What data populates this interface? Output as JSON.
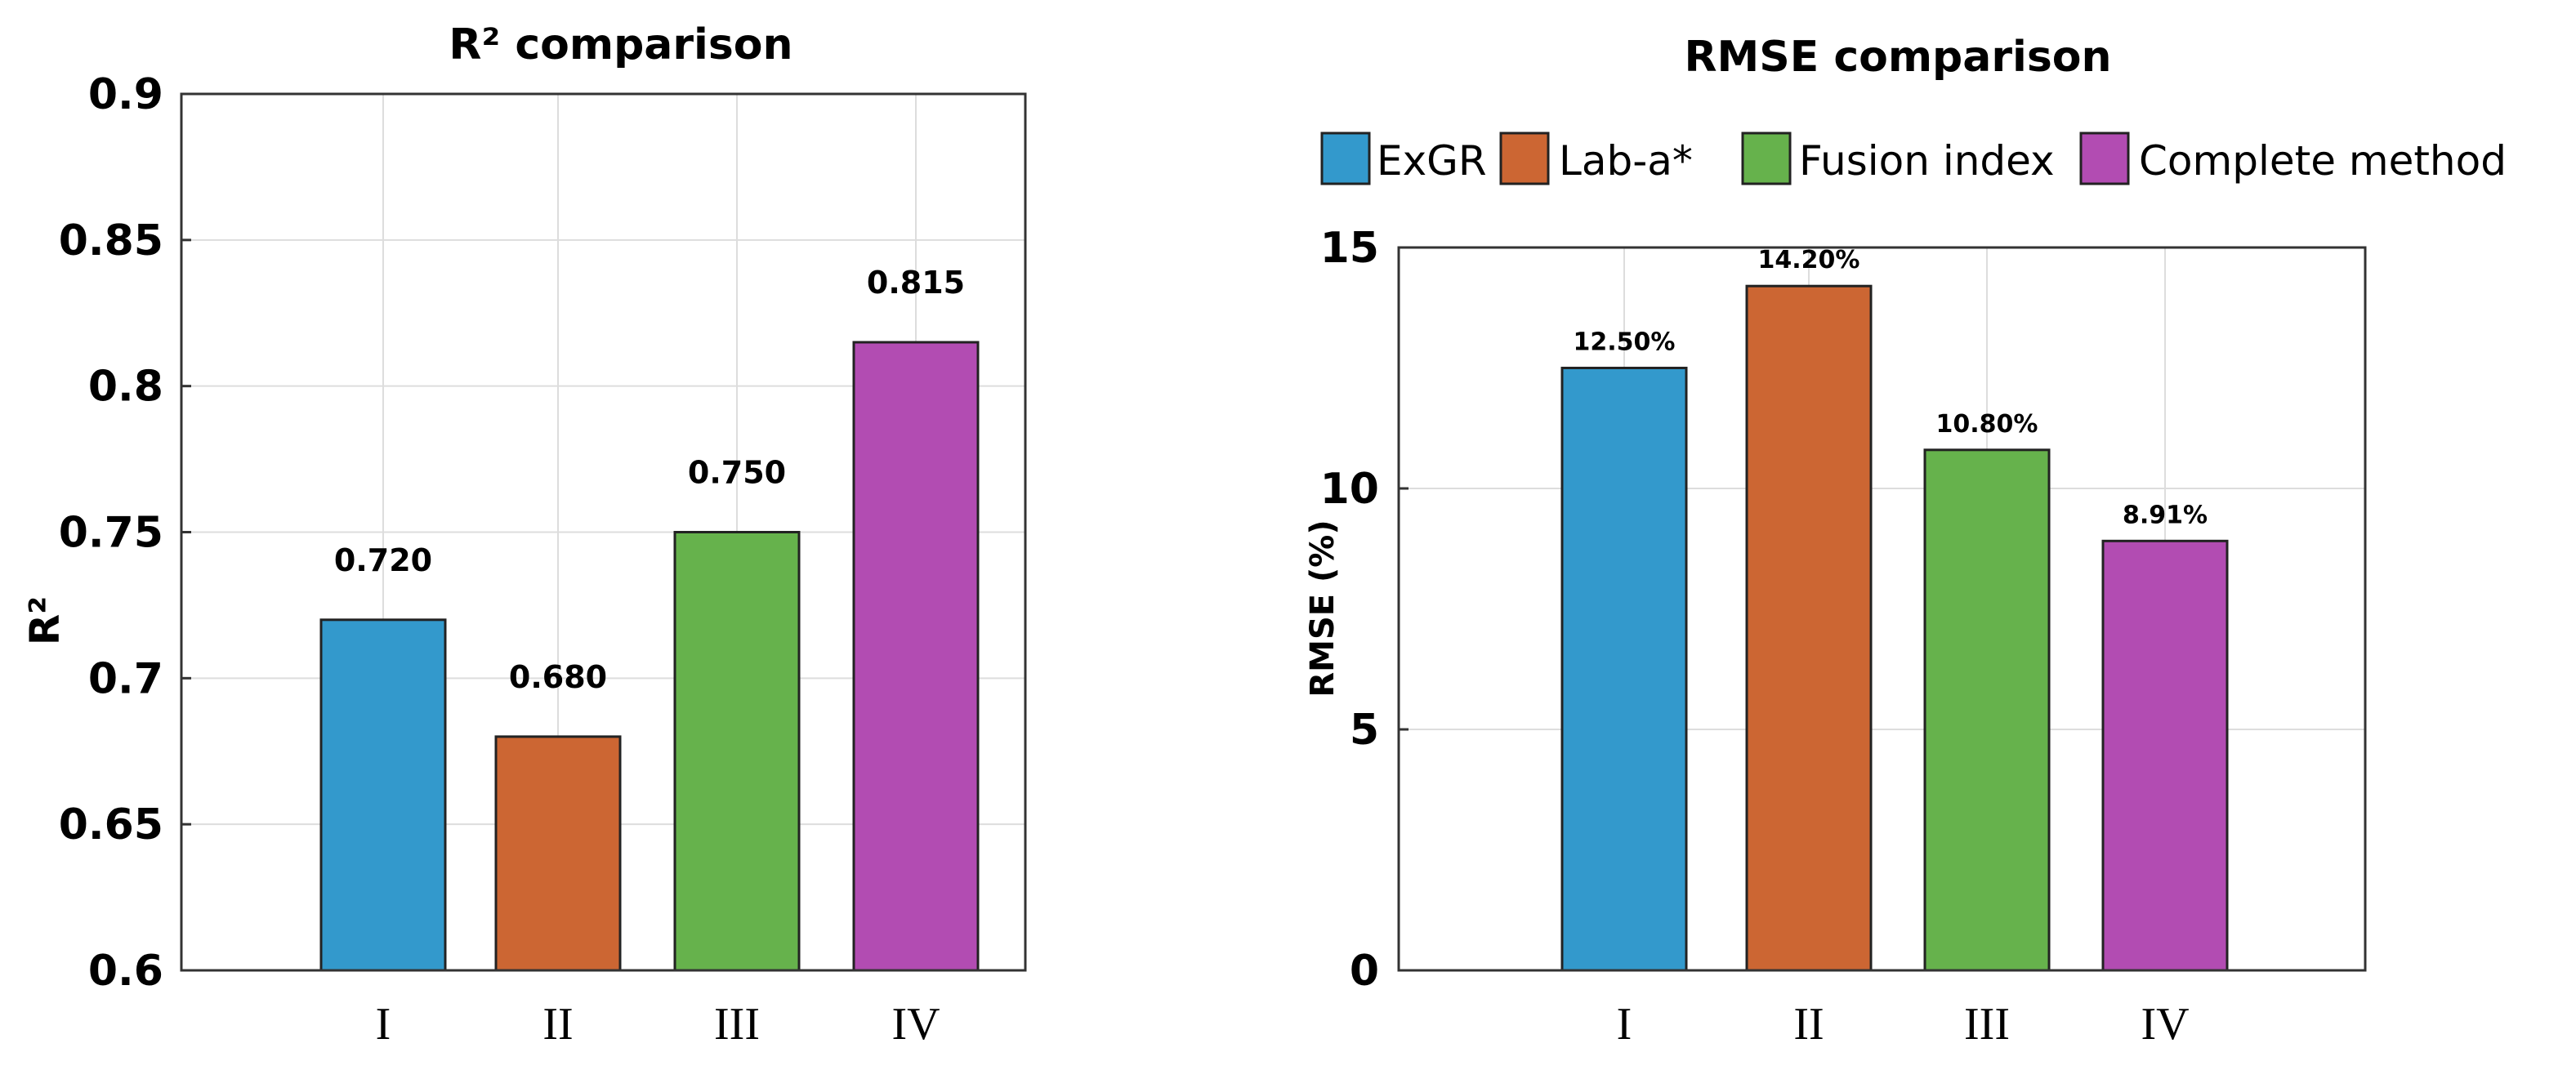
{
  "colors": {
    "exgr": "#3399cc",
    "laba": "#cc6633",
    "fusion": "#66b24c",
    "complete": "#b24cb2",
    "grid": "#dddddd",
    "axis": "#333333",
    "text": "#000000"
  },
  "legend": {
    "items": [
      {
        "label": "ExGR",
        "color": "#3399cc"
      },
      {
        "label": "Lab-a*",
        "color": "#cc6633"
      },
      {
        "label": "Fusion index",
        "color": "#66b24c"
      },
      {
        "label": "Complete method",
        "color": "#b24cb2"
      }
    ]
  },
  "chart_data": [
    {
      "type": "bar",
      "title": "R² comparison",
      "xlabel": "",
      "ylabel": "R²",
      "categories": [
        "I",
        "II",
        "III",
        "IV"
      ],
      "values": [
        0.72,
        0.68,
        0.75,
        0.815
      ],
      "value_labels": [
        "0.720",
        "0.680",
        "0.750",
        "0.815"
      ],
      "colors": [
        "#3399cc",
        "#cc6633",
        "#66b24c",
        "#b24cb2"
      ],
      "ylim": [
        0.6,
        0.9
      ],
      "yticks": [
        0.6,
        0.65,
        0.7,
        0.75,
        0.8,
        0.85,
        0.9
      ],
      "ytick_labels": [
        "0.6",
        "0.65",
        "0.7",
        "0.75",
        "0.8",
        "0.85",
        "0.9"
      ],
      "grid": true
    },
    {
      "type": "bar",
      "title": "RMSE comparison",
      "xlabel": "",
      "ylabel": "RMSE (%)",
      "categories": [
        "I",
        "II",
        "III",
        "IV"
      ],
      "values": [
        12.5,
        14.2,
        10.8,
        8.91
      ],
      "value_labels": [
        "12.50%",
        "14.20%",
        "10.80%",
        "8.91%"
      ],
      "colors": [
        "#3399cc",
        "#cc6633",
        "#66b24c",
        "#b24cb2"
      ],
      "ylim": [
        0,
        15
      ],
      "yticks": [
        0,
        5,
        10,
        15
      ],
      "ytick_labels": [
        "0",
        "5",
        "10",
        "15"
      ],
      "grid": true,
      "legend": "top"
    }
  ]
}
